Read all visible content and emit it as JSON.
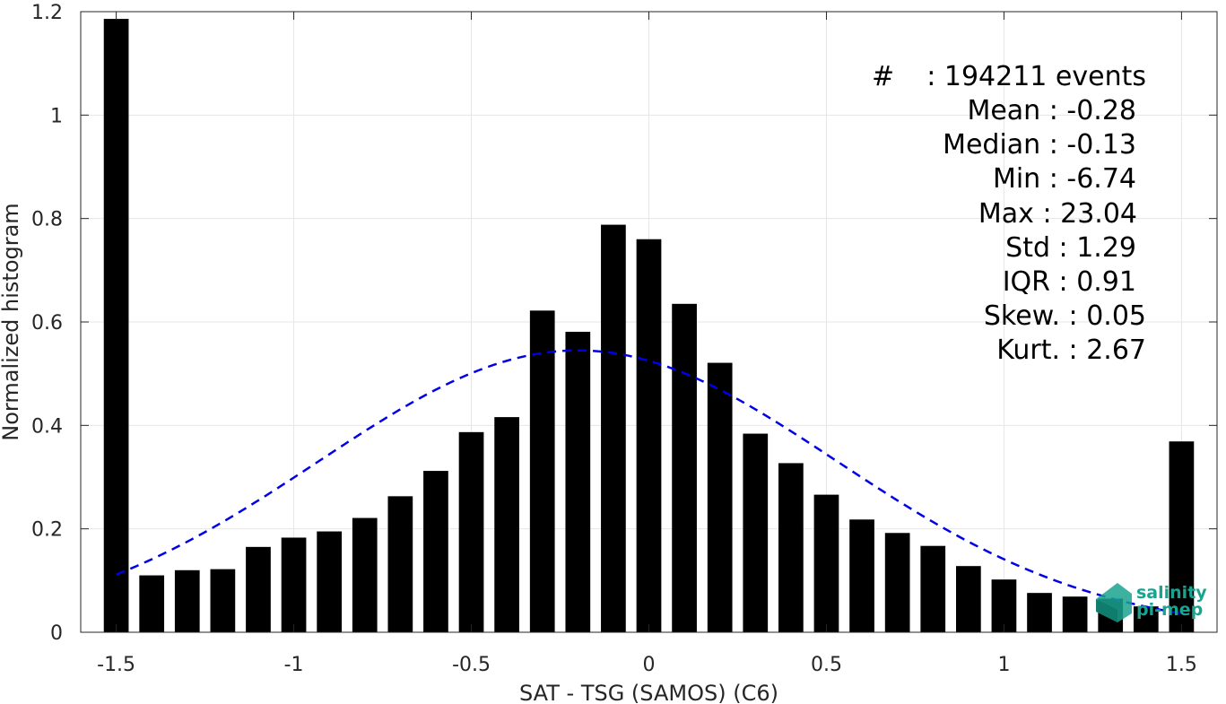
{
  "chart_data": {
    "type": "bar",
    "xlabel": "SAT - TSG (SAMOS) (C6)",
    "ylabel": "Normalized histogram",
    "xlim": [
      -1.6,
      1.6
    ],
    "ylim": [
      0,
      1.2
    ],
    "grid": true,
    "x_ticks": [
      -1.5,
      -1,
      -0.5,
      0,
      0.5,
      1,
      1.5
    ],
    "x_tick_labels": [
      "-1.5",
      "-1",
      "-0.5",
      "0",
      "0.5",
      "1",
      "1.5"
    ],
    "y_ticks": [
      0,
      0.2,
      0.4,
      0.6,
      0.8,
      1,
      1.2
    ],
    "y_tick_labels": [
      "0",
      "0.2",
      "0.4",
      "0.6",
      "0.8",
      "1",
      "1.2"
    ],
    "bar_width": 0.07,
    "x": [
      -1.5,
      -1.4,
      -1.3,
      -1.2,
      -1.1,
      -1.0,
      -0.9,
      -0.8,
      -0.7,
      -0.6,
      -0.5,
      -0.4,
      -0.3,
      -0.2,
      -0.1,
      0.0,
      0.1,
      0.2,
      0.3,
      0.4,
      0.5,
      0.6,
      0.7,
      0.8,
      0.9,
      1.0,
      1.1,
      1.2,
      1.3,
      1.4,
      1.5
    ],
    "values": [
      1.186,
      0.11,
      0.12,
      0.122,
      0.165,
      0.183,
      0.195,
      0.221,
      0.263,
      0.312,
      0.387,
      0.416,
      0.622,
      0.581,
      0.788,
      0.76,
      0.635,
      0.521,
      0.384,
      0.327,
      0.266,
      0.218,
      0.192,
      0.167,
      0.128,
      0.102,
      0.076,
      0.069,
      0.065,
      0.05,
      0.369
    ],
    "fit_curve": {
      "style": "dashed",
      "color": "#0000e6",
      "x_range": [
        -1.5,
        1.5
      ],
      "mean": -0.2,
      "std": 0.73,
      "peak": 0.545
    },
    "bar_color": "#000000"
  },
  "stats": [
    {
      "label": "#",
      "sep": " : ",
      "value": "194211 events"
    },
    {
      "label": "Mean",
      "sep": " : ",
      "value": "-0.28"
    },
    {
      "label": "Median",
      "sep": " : ",
      "value": "-0.13"
    },
    {
      "label": "Min",
      "sep": " : ",
      "value": "-6.74"
    },
    {
      "label": "Max",
      "sep": " : ",
      "value": "23.04"
    },
    {
      "label": "Std",
      "sep": " : ",
      "value": "1.29"
    },
    {
      "label": "IQR",
      "sep": " : ",
      "value": "0.91"
    },
    {
      "label": "Skew.",
      "sep": " : ",
      "value": "0.05"
    },
    {
      "label": "Kurt.",
      "sep": " : ",
      "value": "2.67"
    }
  ],
  "logo": {
    "line1": "salinity",
    "line2": "pi-mep",
    "color": "#1aa38f"
  }
}
